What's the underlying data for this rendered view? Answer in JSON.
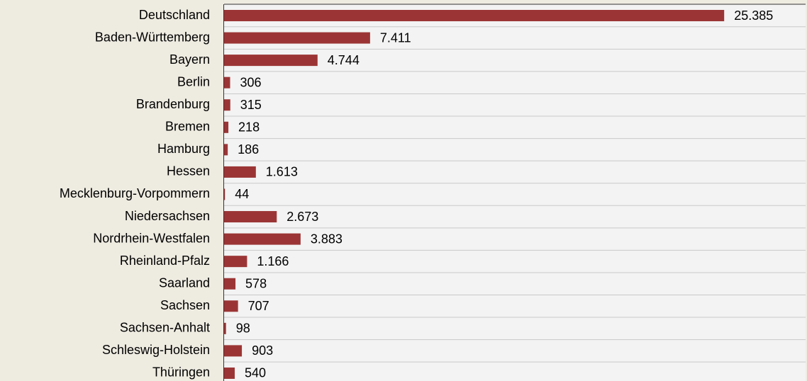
{
  "chart_data": {
    "type": "barh",
    "categories": [
      "Deutschland",
      "Baden-Württemberg",
      "Bayern",
      "Berlin",
      "Brandenburg",
      "Bremen",
      "Hamburg",
      "Hessen",
      "Mecklenburg-Vorpommern",
      "Niedersachsen",
      "Nordrhein-Westfalen",
      "Rheinland-Pfalz",
      "Saarland",
      "Sachsen",
      "Sachsen-Anhalt",
      "Schleswig-Holstein",
      "Thüringen"
    ],
    "values": [
      25385,
      7411,
      4744,
      306,
      315,
      218,
      186,
      1613,
      44,
      2673,
      3883,
      1166,
      578,
      707,
      98,
      903,
      540
    ],
    "value_labels": [
      "25.385",
      "7.411",
      "4.744",
      "306",
      "315",
      "218",
      "186",
      "1.613",
      "44",
      "2.673",
      "3.883",
      "1.166",
      "578",
      "707",
      "98",
      "903",
      "540"
    ],
    "color": "#9b3535"
  }
}
